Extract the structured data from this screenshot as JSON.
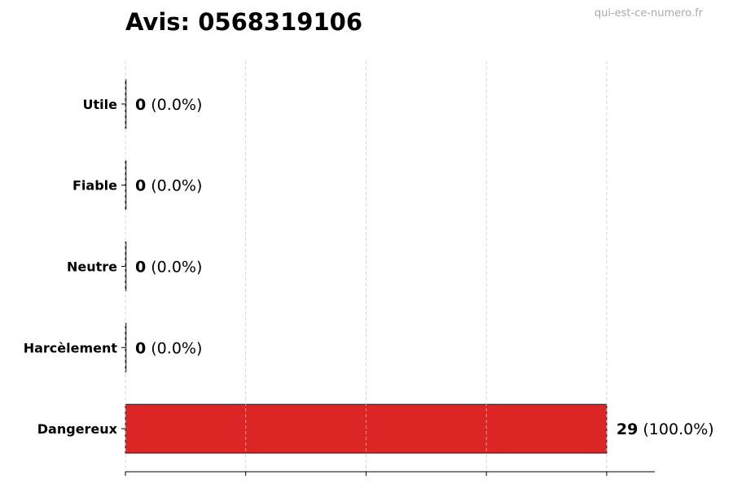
{
  "chart_data": {
    "type": "bar",
    "orientation": "horizontal",
    "title": "Avis: 0568319106",
    "watermark": "qui-est-ce-numero.fr",
    "categories": [
      "Dangereux",
      "Harcèlement",
      "Neutre",
      "Fiable",
      "Utile"
    ],
    "values": [
      29,
      0,
      0,
      0,
      0
    ],
    "data_labels": [
      {
        "count": "29",
        "pct": "(100.0%)"
      },
      {
        "count": "0",
        "pct": "(0.0%)"
      },
      {
        "count": "0",
        "pct": "(0.0%)"
      },
      {
        "count": "0",
        "pct": "(0.0%)"
      },
      {
        "count": "0",
        "pct": "(0.0%)"
      }
    ],
    "xlim": [
      0,
      31.9
    ],
    "xticks": [
      0,
      7.25,
      14.5,
      21.75,
      29
    ],
    "xtick_labels_shown": false,
    "grid": "x dashed",
    "bar_color": "#dc2626",
    "edge_color": "#1a1a1a",
    "xlabel": "",
    "ylabel": ""
  }
}
